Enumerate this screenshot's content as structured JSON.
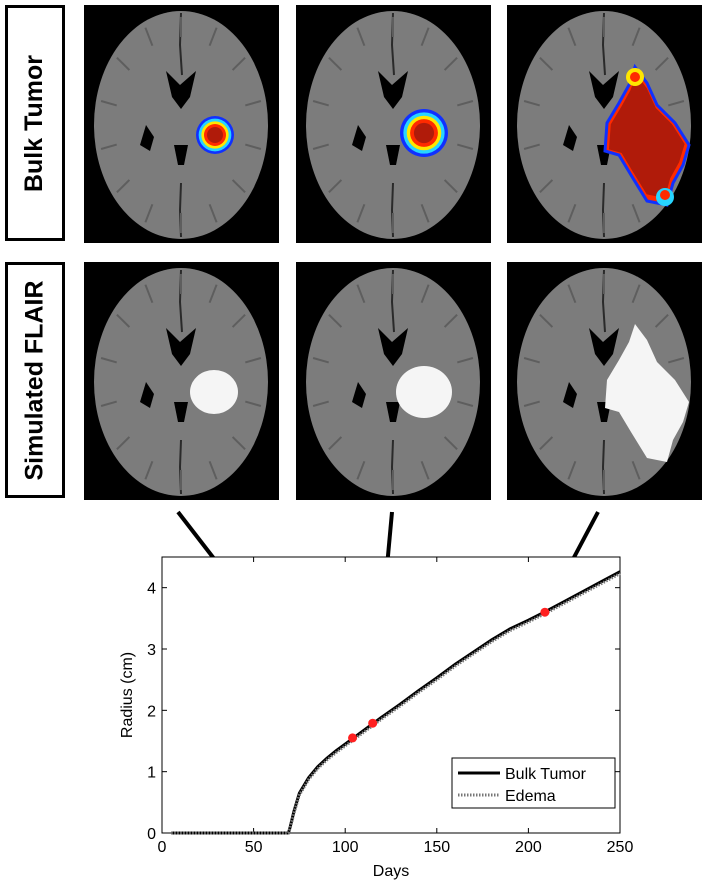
{
  "row_labels": [
    "Bulk Tumor",
    "Simulated FLAIR"
  ],
  "colors": {
    "brain_background": "#000000",
    "brain_tissue": "#7c7c7c",
    "ventricle": "#000000",
    "tumor_core": "#b01b0a",
    "tumor_rim_red": "#ff2a00",
    "tumor_rim_yellow": "#ffe600",
    "tumor_rim_cyan": "#27d4ff",
    "tumor_rim_blue": "#1030ff",
    "edema": "#f5f5f5",
    "marker": "#ff2020",
    "arrow": "#000000"
  },
  "chart_data": {
    "type": "line",
    "xlabel": "Days",
    "ylabel": "Radius (cm)",
    "xlim": [
      0,
      250
    ],
    "ylim": [
      0,
      4.5
    ],
    "xticks": [
      0,
      50,
      100,
      150,
      200,
      250
    ],
    "yticks": [
      0,
      1,
      2,
      3,
      4
    ],
    "grid": false,
    "legend_position": "bottom-right",
    "series": [
      {
        "name": "Bulk Tumor",
        "style": "solid",
        "x": [
          5,
          69,
          70,
          72,
          75,
          80,
          85,
          90,
          95,
          100,
          105,
          110,
          115,
          120,
          130,
          140,
          150,
          160,
          170,
          180,
          190,
          200,
          210,
          220,
          230,
          240,
          250
        ],
        "y": [
          0,
          0,
          0.1,
          0.35,
          0.65,
          0.9,
          1.08,
          1.22,
          1.34,
          1.45,
          1.56,
          1.67,
          1.78,
          1.89,
          2.1,
          2.32,
          2.53,
          2.75,
          2.95,
          3.15,
          3.33,
          3.47,
          3.62,
          3.78,
          3.94,
          4.1,
          4.26
        ]
      },
      {
        "name": "Edema",
        "style": "dotted",
        "x": [
          5,
          69,
          70,
          72,
          75,
          80,
          85,
          90,
          95,
          100,
          105,
          110,
          115,
          120,
          130,
          140,
          150,
          160,
          170,
          180,
          190,
          200,
          210,
          220,
          230,
          240,
          250
        ],
        "y": [
          0,
          0,
          0.08,
          0.32,
          0.62,
          0.87,
          1.05,
          1.19,
          1.31,
          1.42,
          1.53,
          1.64,
          1.75,
          1.86,
          2.07,
          2.29,
          2.5,
          2.72,
          2.92,
          3.12,
          3.3,
          3.44,
          3.59,
          3.75,
          3.91,
          4.07,
          4.23
        ]
      }
    ],
    "markers": [
      {
        "x": 104,
        "y": 1.55
      },
      {
        "x": 115,
        "y": 1.79
      },
      {
        "x": 209,
        "y": 3.6
      }
    ]
  }
}
